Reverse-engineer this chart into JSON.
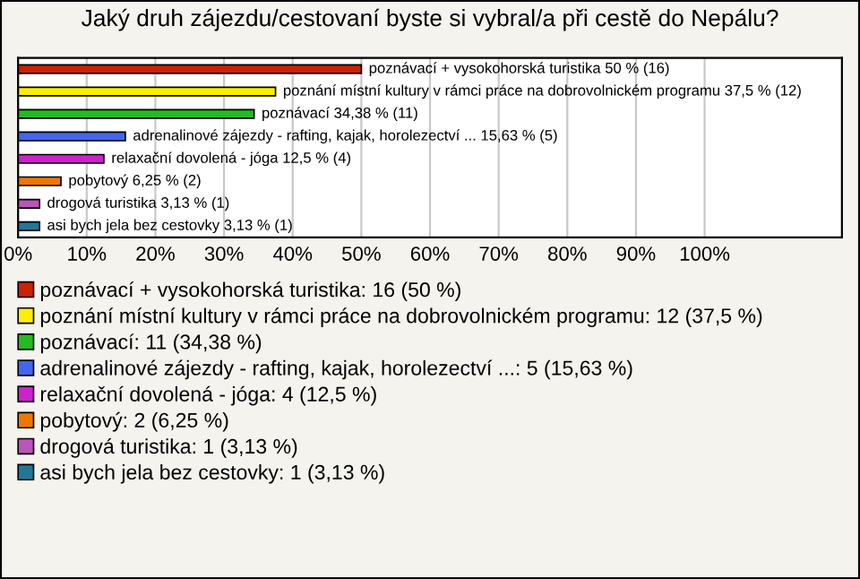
{
  "chart_data": {
    "type": "bar",
    "orientation": "horizontal",
    "title": "Jaký druh zájezdu/cestovaní byste si vybral/a při cestě do Nepálu?",
    "categories": [
      null,
      null,
      null,
      null,
      null,
      null,
      null,
      null
    ],
    "series": [
      {
        "name": "poznávací + vysokohorská turistika: 16 (50 %)",
        "color": "#cc2200",
        "values": [
          50,
          null,
          null,
          null,
          null,
          null,
          null,
          null
        ],
        "value_labels": [
          "poznávací + vysokohorská turistika 50 % (16)",
          null,
          null,
          null,
          null,
          null,
          null,
          null
        ]
      },
      {
        "name": "poznání místní kultury v rámci práce na dobrovolnickém programu: 12 (37,5 %)",
        "color": "#ffee00",
        "values": [
          null,
          37.5,
          null,
          null,
          null,
          null,
          null,
          null
        ],
        "value_labels": [
          null,
          "poznání místní kultury v rámci práce na dobrovolnickém programu 37,5 % (12)",
          null,
          null,
          null,
          null,
          null,
          null
        ]
      },
      {
        "name": "poznávací: 11 (34,38 %)",
        "color": "#22bb22",
        "values": [
          null,
          null,
          34.38,
          null,
          null,
          null,
          null,
          null
        ],
        "value_labels": [
          null,
          null,
          "poznávací 34,38 % (11)",
          null,
          null,
          null,
          null,
          null
        ]
      },
      {
        "name": "adrenalinové zájezdy - rafting, kajak, horolezectví ...: 5 (15,63 %)",
        "color": "#4466ee",
        "values": [
          null,
          null,
          null,
          15.63,
          null,
          null,
          null,
          null
        ],
        "value_labels": [
          null,
          null,
          null,
          "adrenalinové zájezdy - rafting, kajak, horolezectví ... 15,63 % (5)",
          null,
          null,
          null,
          null
        ]
      },
      {
        "name": "relaxační dovolená - jóga: 4 (12,5 %)",
        "color": "#cc22cc",
        "values": [
          null,
          null,
          null,
          null,
          12.5,
          null,
          null,
          null
        ],
        "value_labels": [
          null,
          null,
          null,
          null,
          "relaxační dovolená - jóga 12,5 % (4)",
          null,
          null,
          null
        ]
      },
      {
        "name": "pobytový: 2 (6,25 %)",
        "color": "#ee7700",
        "values": [
          null,
          null,
          null,
          null,
          null,
          6.25,
          null,
          null
        ],
        "value_labels": [
          null,
          null,
          null,
          null,
          null,
          "pobytový 6,25 % (2)",
          null,
          null
        ]
      },
      {
        "name": "drogová turistika: 1 (3,13 %)",
        "color": "#bb55bb",
        "values": [
          null,
          null,
          null,
          null,
          null,
          null,
          3.13,
          null
        ],
        "value_labels": [
          null,
          null,
          null,
          null,
          null,
          null,
          "drogová turistika 3,13 % (1)",
          null
        ]
      },
      {
        "name": "asi bych jela bez cestovky: 1 (3,13 %)",
        "color": "#227799",
        "values": [
          null,
          null,
          null,
          null,
          null,
          null,
          null,
          3.13
        ],
        "value_labels": [
          null,
          null,
          null,
          null,
          null,
          null,
          null,
          "asi bych jela bez cestovky 3,13 % (1)"
        ]
      }
    ],
    "xlim": [
      0,
      120
    ],
    "xticks": [
      {
        "value": 0,
        "label": "0%"
      },
      {
        "value": 10,
        "label": "10%"
      },
      {
        "value": 20,
        "label": "20%"
      },
      {
        "value": 30,
        "label": "30%"
      },
      {
        "value": 40,
        "label": "40%"
      },
      {
        "value": 50,
        "label": "50%"
      },
      {
        "value": 60,
        "label": "60%"
      },
      {
        "value": 70,
        "label": "70%"
      },
      {
        "value": 80,
        "label": "80%"
      },
      {
        "value": 90,
        "label": "90%"
      },
      {
        "value": 100,
        "label": "100%"
      }
    ],
    "grid": "x",
    "legend": "bottom",
    "tick_labels": "x"
  }
}
